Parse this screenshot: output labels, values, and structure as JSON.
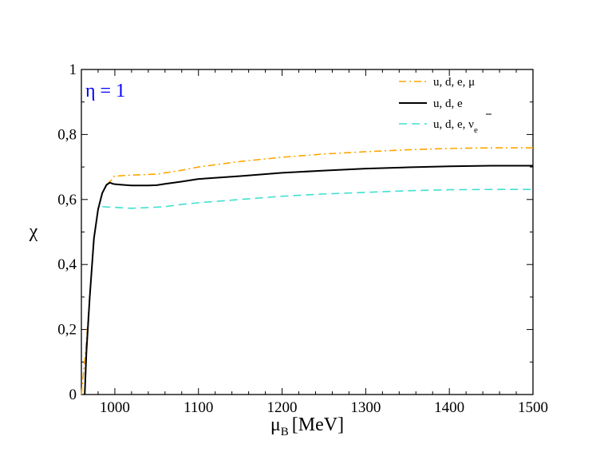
{
  "chart_data": {
    "type": "line",
    "title": "",
    "annotation": "η = 1",
    "annotation_color": "#0000ff",
    "xlabel_main": "μ",
    "xlabel_sub": "B",
    "xlabel_unit": "[MeV]",
    "ylabel": "χ",
    "xlim": [
      960,
      1500
    ],
    "ylim": [
      0,
      1
    ],
    "x_ticks": [
      1000,
      1100,
      1200,
      1300,
      1400,
      1500
    ],
    "x_tick_labels": [
      "1000",
      "1100",
      "1200",
      "1300",
      "1400",
      "1500"
    ],
    "y_ticks": [
      0,
      0.2,
      0.4,
      0.6,
      0.8,
      1
    ],
    "y_tick_labels": [
      "0",
      "0,2",
      "0,4",
      "0,6",
      "0,8",
      "1"
    ],
    "grid": false,
    "legend_position": "top-right",
    "series": [
      {
        "legend_text": "u, d, e, μ",
        "color": "#ffa500",
        "dash": "dashdot",
        "x": [
          960,
          965,
          970,
          975,
          980,
          985,
          990,
          994,
          996,
          998,
          1000,
          1020,
          1040,
          1050,
          1060,
          1080,
          1100,
          1150,
          1200,
          1250,
          1300,
          1350,
          1400,
          1450,
          1500
        ],
        "y": [
          0.0,
          0.13,
          0.3,
          0.48,
          0.57,
          0.62,
          0.645,
          0.655,
          0.66,
          0.67,
          0.672,
          0.675,
          0.677,
          0.678,
          0.682,
          0.69,
          0.7,
          0.717,
          0.73,
          0.74,
          0.747,
          0.753,
          0.757,
          0.759,
          0.759
        ]
      },
      {
        "legend_text": "u, d, e",
        "color": "#000000",
        "dash": "solid",
        "x": [
          964,
          966,
          970,
          975,
          980,
          985,
          990,
          994,
          996,
          998,
          1000,
          1010,
          1020,
          1030,
          1040,
          1050,
          1060,
          1080,
          1100,
          1150,
          1200,
          1250,
          1300,
          1350,
          1400,
          1450,
          1500
        ],
        "y": [
          0.0,
          0.13,
          0.3,
          0.48,
          0.57,
          0.62,
          0.645,
          0.652,
          0.65,
          0.648,
          0.647,
          0.645,
          0.643,
          0.643,
          0.643,
          0.644,
          0.648,
          0.655,
          0.663,
          0.672,
          0.682,
          0.689,
          0.695,
          0.699,
          0.702,
          0.704,
          0.704
        ]
      },
      {
        "legend_text": "u, d, e, ν",
        "legend_sub": "e",
        "color": "#40e0d0",
        "dash": "dashed",
        "x": [
          985,
          990,
          1000,
          1010,
          1020,
          1040,
          1060,
          1080,
          1100,
          1150,
          1200,
          1250,
          1300,
          1350,
          1400,
          1450,
          1500
        ],
        "y": [
          0.578,
          0.577,
          0.576,
          0.574,
          0.573,
          0.575,
          0.578,
          0.585,
          0.59,
          0.6,
          0.61,
          0.617,
          0.622,
          0.627,
          0.63,
          0.631,
          0.631
        ]
      }
    ]
  }
}
